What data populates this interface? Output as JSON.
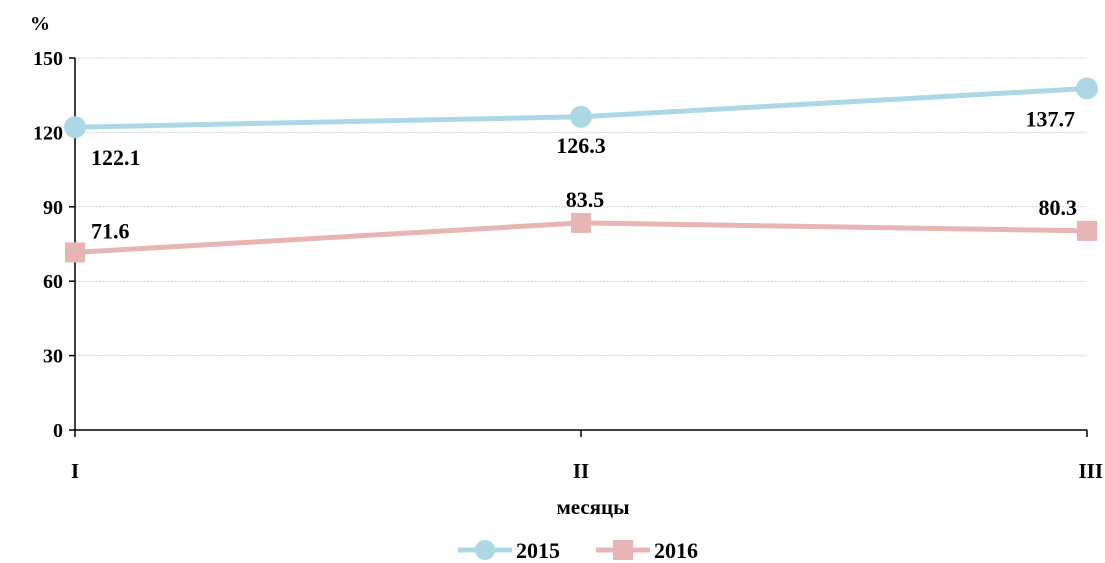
{
  "chart_data": {
    "type": "line",
    "categories": [
      "I",
      "II",
      "III"
    ],
    "series": [
      {
        "name": "2015",
        "values": [
          122.1,
          126.3,
          137.7
        ],
        "color": "#acd8e6",
        "marker": "circle"
      },
      {
        "name": "2016",
        "values": [
          71.6,
          83.5,
          80.3
        ],
        "color": "#e8b4b4",
        "marker": "square"
      }
    ],
    "ylabel": "%",
    "xlabel": "месяцы",
    "ylim": [
      0,
      150
    ],
    "yticks": [
      0,
      30,
      60,
      90,
      120,
      150
    ],
    "grid": true,
    "legend": "bottom"
  }
}
